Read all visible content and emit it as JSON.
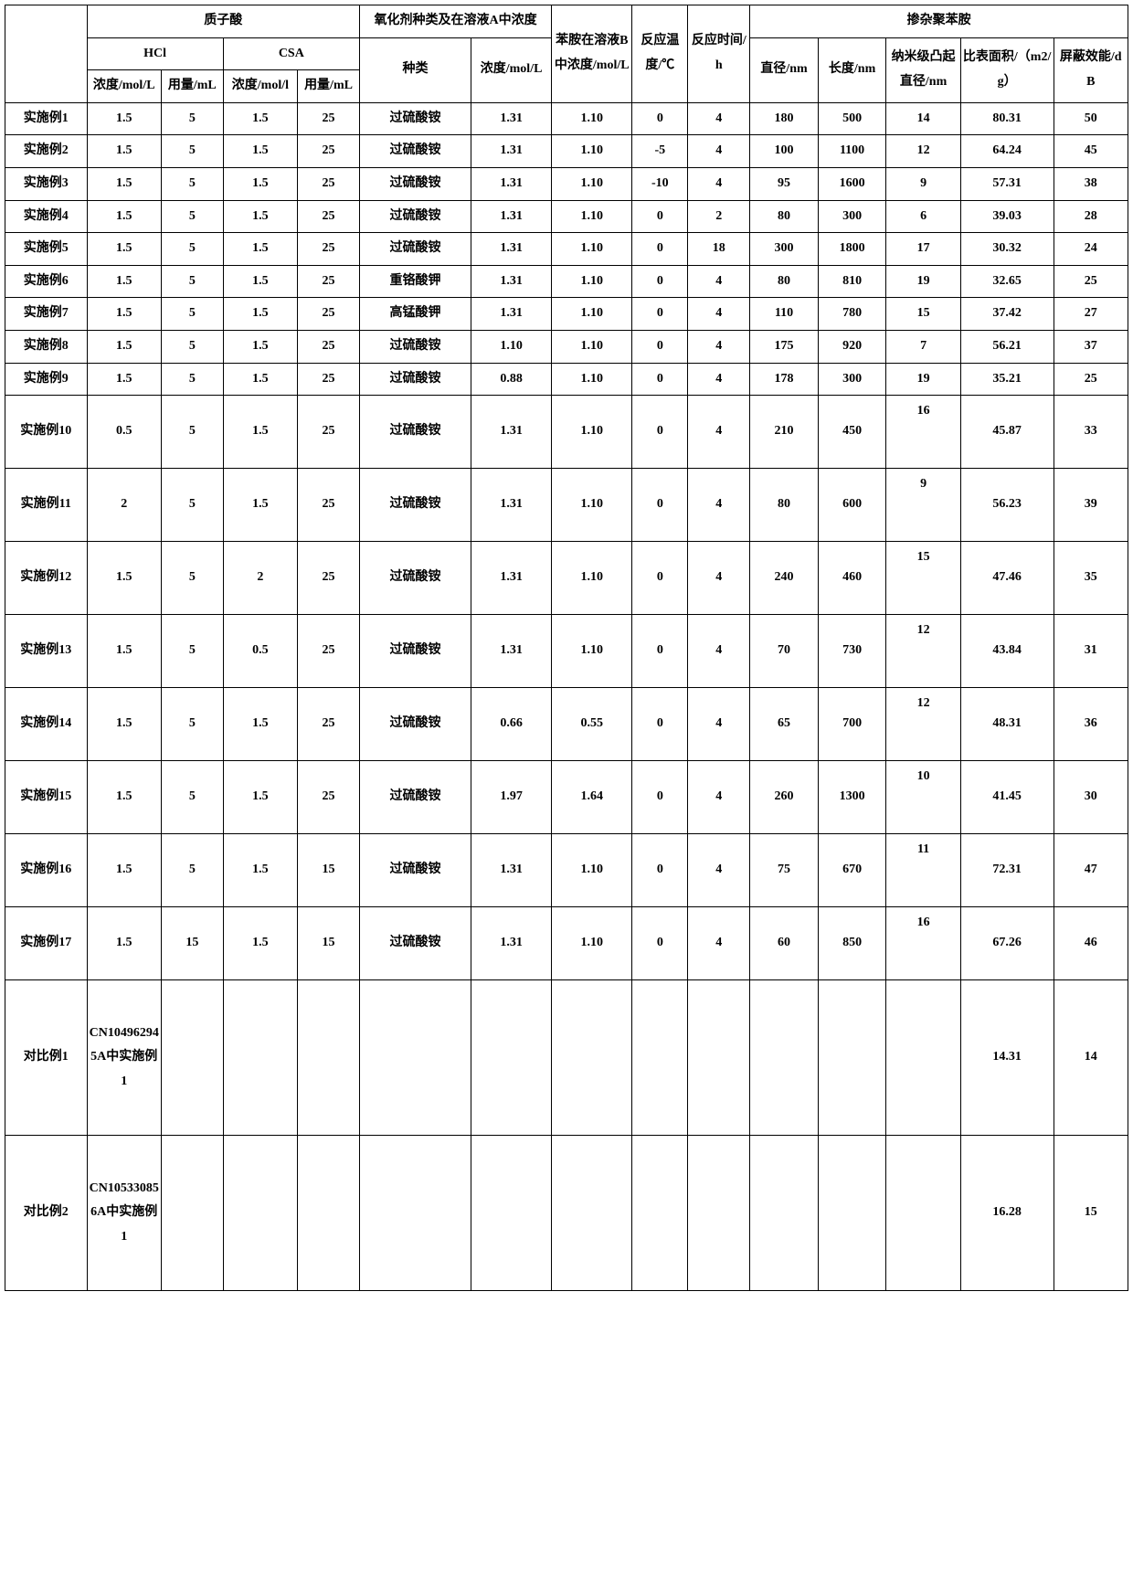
{
  "headers": {
    "col0": "",
    "protonic_acid": "质子酸",
    "hcl": "HCl",
    "csa": "CSA",
    "oxidant": "氧化剂种类及在溶液A中浓度",
    "aniline": "苯胺在溶液B中浓度/mol/L",
    "temp": "反应温度/℃",
    "time": "反应时间/h",
    "doped": "掺杂聚苯胺",
    "hcl_conc": "浓度/mol/L",
    "hcl_vol": "用量/mL",
    "csa_conc": "浓度/mol/l",
    "csa_vol": "用量/mL",
    "ox_kind": "种类",
    "ox_conc": "浓度/mol/L",
    "diam": "直径/nm",
    "length": "长度/nm",
    "bump": "纳米级凸起直径/nm",
    "surface": "比表面积/（m2/g）",
    "shield": "屏蔽效能/dB"
  },
  "oxidants": {
    "aps": "过硫酸铵",
    "dichrom": "重铬酸钾",
    "permang": "高锰酸钾"
  },
  "rows": [
    {
      "label": "实施例1",
      "hclC": "1.5",
      "hclV": "5",
      "csaC": "1.5",
      "csaV": "25",
      "ox": "aps",
      "oxC": "1.31",
      "an": "1.10",
      "t": "0",
      "h": "4",
      "d": "180",
      "l": "500",
      "b": "14",
      "s": "80.31",
      "e": "50"
    },
    {
      "label": "实施例2",
      "hclC": "1.5",
      "hclV": "5",
      "csaC": "1.5",
      "csaV": "25",
      "ox": "aps",
      "oxC": "1.31",
      "an": "1.10",
      "t": "-5",
      "h": "4",
      "d": "100",
      "l": "1100",
      "b": "12",
      "s": "64.24",
      "e": "45"
    },
    {
      "label": "实施例3",
      "hclC": "1.5",
      "hclV": "5",
      "csaC": "1.5",
      "csaV": "25",
      "ox": "aps",
      "oxC": "1.31",
      "an": "1.10",
      "t": "-10",
      "h": "4",
      "d": "95",
      "l": "1600",
      "b": "9",
      "s": "57.31",
      "e": "38"
    },
    {
      "label": "实施例4",
      "hclC": "1.5",
      "hclV": "5",
      "csaC": "1.5",
      "csaV": "25",
      "ox": "aps",
      "oxC": "1.31",
      "an": "1.10",
      "t": "0",
      "h": "2",
      "d": "80",
      "l": "300",
      "b": "6",
      "s": "39.03",
      "e": "28"
    },
    {
      "label": "实施例5",
      "hclC": "1.5",
      "hclV": "5",
      "csaC": "1.5",
      "csaV": "25",
      "ox": "aps",
      "oxC": "1.31",
      "an": "1.10",
      "t": "0",
      "h": "18",
      "d": "300",
      "l": "1800",
      "b": "17",
      "s": "30.32",
      "e": "24"
    },
    {
      "label": "实施例6",
      "hclC": "1.5",
      "hclV": "5",
      "csaC": "1.5",
      "csaV": "25",
      "ox": "dichrom",
      "oxC": "1.31",
      "an": "1.10",
      "t": "0",
      "h": "4",
      "d": "80",
      "l": "810",
      "b": "19",
      "s": "32.65",
      "e": "25"
    },
    {
      "label": "实施例7",
      "hclC": "1.5",
      "hclV": "5",
      "csaC": "1.5",
      "csaV": "25",
      "ox": "permang",
      "oxC": "1.31",
      "an": "1.10",
      "t": "0",
      "h": "4",
      "d": "110",
      "l": "780",
      "b": "15",
      "s": "37.42",
      "e": "27"
    },
    {
      "label": "实施例8",
      "hclC": "1.5",
      "hclV": "5",
      "csaC": "1.5",
      "csaV": "25",
      "ox": "aps",
      "oxC": "1.10",
      "an": "1.10",
      "t": "0",
      "h": "4",
      "d": "175",
      "l": "920",
      "b": "7",
      "s": "56.21",
      "e": "37"
    },
    {
      "label": "实施例9",
      "hclC": "1.5",
      "hclV": "5",
      "csaC": "1.5",
      "csaV": "25",
      "ox": "aps",
      "oxC": "0.88",
      "an": "1.10",
      "t": "0",
      "h": "4",
      "d": "178",
      "l": "300",
      "b": "19",
      "s": "35.21",
      "e": "25"
    },
    {
      "label": "实施例10",
      "hclC": "0.5",
      "hclV": "5",
      "csaC": "1.5",
      "csaV": "25",
      "ox": "aps",
      "oxC": "1.31",
      "an": "1.10",
      "t": "0",
      "h": "4",
      "d": "210",
      "l": "450",
      "b": "16",
      "s": "45.87",
      "e": "33",
      "tall": true
    },
    {
      "label": "实施例11",
      "hclC": "2",
      "hclV": "5",
      "csaC": "1.5",
      "csaV": "25",
      "ox": "aps",
      "oxC": "1.31",
      "an": "1.10",
      "t": "0",
      "h": "4",
      "d": "80",
      "l": "600",
      "b": "9",
      "s": "56.23",
      "e": "39",
      "tall": true
    },
    {
      "label": "实施例12",
      "hclC": "1.5",
      "hclV": "5",
      "csaC": "2",
      "csaV": "25",
      "ox": "aps",
      "oxC": "1.31",
      "an": "1.10",
      "t": "0",
      "h": "4",
      "d": "240",
      "l": "460",
      "b": "15",
      "s": "47.46",
      "e": "35",
      "tall": true
    },
    {
      "label": "实施例13",
      "hclC": "1.5",
      "hclV": "5",
      "csaC": "0.5",
      "csaV": "25",
      "ox": "aps",
      "oxC": "1.31",
      "an": "1.10",
      "t": "0",
      "h": "4",
      "d": "70",
      "l": "730",
      "b": "12",
      "s": "43.84",
      "e": "31",
      "tall": true
    },
    {
      "label": "实施例14",
      "hclC": "1.5",
      "hclV": "5",
      "csaC": "1.5",
      "csaV": "25",
      "ox": "aps",
      "oxC": "0.66",
      "an": "0.55",
      "t": "0",
      "h": "4",
      "d": "65",
      "l": "700",
      "b": "12",
      "s": "48.31",
      "e": "36",
      "tall": true
    },
    {
      "label": "实施例15",
      "hclC": "1.5",
      "hclV": "5",
      "csaC": "1.5",
      "csaV": "25",
      "ox": "aps",
      "oxC": "1.97",
      "an": "1.64",
      "t": "0",
      "h": "4",
      "d": "260",
      "l": "1300",
      "b": "10",
      "s": "41.45",
      "e": "30",
      "tall": true
    },
    {
      "label": "实施例16",
      "hclC": "1.5",
      "hclV": "5",
      "csaC": "1.5",
      "csaV": "15",
      "ox": "aps",
      "oxC": "1.31",
      "an": "1.10",
      "t": "0",
      "h": "4",
      "d": "75",
      "l": "670",
      "b": "11",
      "s": "72.31",
      "e": "47",
      "tall": true
    },
    {
      "label": "实施例17",
      "hclC": "1.5",
      "hclV": "15",
      "csaC": "1.5",
      "csaV": "15",
      "ox": "aps",
      "oxC": "1.31",
      "an": "1.10",
      "t": "0",
      "h": "4",
      "d": "60",
      "l": "850",
      "b": "16",
      "s": "67.26",
      "e": "46",
      "tall": true
    }
  ],
  "compRows": [
    {
      "label": "对比例1",
      "hclC": "CN10496294 5A中实施例1",
      "s": "14.31",
      "e": "14"
    },
    {
      "label": "对比例2",
      "hclC": "CN10533085 6A中实施例1",
      "s": "16.28",
      "e": "15"
    }
  ]
}
